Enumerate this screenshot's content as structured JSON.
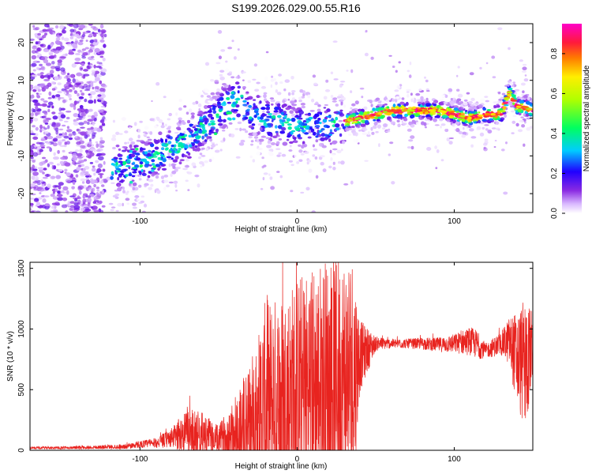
{
  "title": "S199.2026.029.00.55.R16",
  "chart_data": [
    {
      "type": "heatmap",
      "xlabel": "Height of straight line (km)",
      "ylabel": "Frequency (Hz)",
      "xlim": [
        -170,
        150
      ],
      "ylim": [
        -25,
        25
      ],
      "xticks": [
        -100,
        0,
        100
      ],
      "yticks": [
        -20,
        -10,
        0,
        10,
        20
      ],
      "xtick_labels": [
        "-100",
        "0",
        "100"
      ],
      "ytick_labels": [
        "-20",
        "-10",
        "0",
        "10",
        "20"
      ],
      "ridge": {
        "x": [
          -115,
          -100,
          -85,
          -70,
          -55,
          -45,
          -38,
          -30,
          -20,
          -10,
          0,
          10,
          20,
          30,
          40,
          50,
          60,
          70,
          80,
          90,
          100,
          110,
          120,
          130,
          135,
          140,
          145,
          150
        ],
        "y": [
          -13,
          -12,
          -9,
          -6,
          -1,
          3,
          5,
          1,
          0,
          -1,
          -2,
          -2,
          -2,
          -1,
          0,
          1,
          2,
          2,
          2,
          2,
          1,
          0,
          1,
          1,
          7,
          3,
          3,
          2
        ]
      },
      "colorbar": {
        "label": "Normalized spectral amplitude",
        "range": [
          0,
          0.95
        ],
        "ticks": [
          0.0,
          0.2,
          0.4,
          0.6,
          0.8
        ],
        "tick_labels": [
          "0.0",
          "0.2",
          "0.4",
          "0.6",
          "0.8"
        ]
      }
    },
    {
      "type": "line",
      "xlabel": "Height of straight line (km)",
      "ylabel": "SNR (10 * v/v)",
      "xlim": [
        -170,
        150
      ],
      "ylim": [
        0,
        1550
      ],
      "xticks": [
        -100,
        0,
        100
      ],
      "yticks": [
        0,
        500,
        1000,
        1500
      ],
      "xtick_labels": [
        "-100",
        "0",
        "100"
      ],
      "ytick_labels": [
        "0",
        "500",
        "1000",
        "1500"
      ],
      "series": [
        {
          "name": "SNR",
          "color": "#e8231f",
          "x": [
            -170,
            -150,
            -130,
            -110,
            -100,
            -90,
            -80,
            -70,
            -60,
            -50,
            -40,
            -30,
            -20,
            -10,
            0,
            10,
            20,
            30,
            35,
            40,
            50,
            60,
            70,
            80,
            90,
            100,
            110,
            115,
            120,
            130,
            135,
            140,
            145,
            150
          ],
          "baseline": [
            20,
            20,
            25,
            30,
            50,
            60,
            100,
            160,
            130,
            80,
            150,
            220,
            350,
            400,
            450,
            500,
            520,
            560,
            580,
            780,
            880,
            880,
            880,
            880,
            870,
            880,
            900,
            870,
            820,
            880,
            900,
            750,
            700,
            850
          ],
          "amplitude": [
            10,
            12,
            15,
            20,
            30,
            40,
            80,
            200,
            180,
            120,
            300,
            500,
            900,
            900,
            1000,
            1050,
            1100,
            1100,
            1100,
            300,
            60,
            40,
            40,
            50,
            60,
            80,
            120,
            120,
            60,
            100,
            200,
            400,
            550,
            300
          ]
        }
      ]
    }
  ],
  "colors": {
    "line": "#e8231f",
    "axes": "#000000"
  }
}
